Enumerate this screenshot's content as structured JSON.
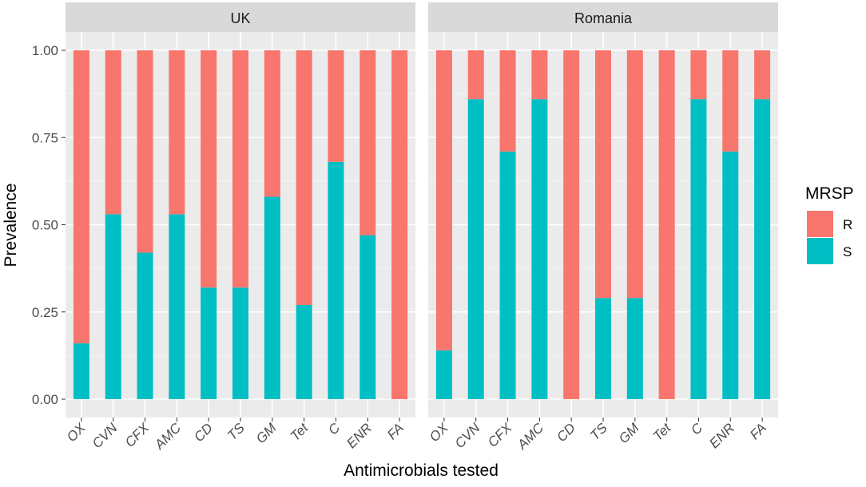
{
  "chart_data": {
    "type": "bar",
    "stacked": true,
    "ylabel": "Prevalence",
    "xlabel": "Antimicrobials tested",
    "ylim": [
      0,
      1
    ],
    "yticks": [
      "0.00",
      "0.25",
      "0.50",
      "0.75",
      "1.00"
    ],
    "ytick_values": [
      0,
      0.25,
      0.5,
      0.75,
      1.0
    ],
    "categories": [
      "OX",
      "CVN",
      "CFX",
      "AMC",
      "CD",
      "TS",
      "GM",
      "Tet",
      "C",
      "ENR",
      "FA"
    ],
    "legend": {
      "title": "MRSP",
      "position": "right",
      "entries": [
        {
          "label": "R",
          "color": "#F8766D"
        },
        {
          "label": "S",
          "color": "#00BFC4"
        }
      ]
    },
    "panels": [
      {
        "facet": "UK",
        "series": [
          {
            "name": "S",
            "values": [
              0.16,
              0.53,
              0.42,
              0.53,
              0.32,
              0.32,
              0.58,
              0.27,
              0.68,
              0.47,
              0.0
            ]
          },
          {
            "name": "R",
            "values": [
              0.84,
              0.47,
              0.58,
              0.47,
              0.68,
              0.68,
              0.42,
              0.73,
              0.32,
              0.53,
              1.0
            ]
          }
        ]
      },
      {
        "facet": "Romania",
        "series": [
          {
            "name": "S",
            "values": [
              0.14,
              0.86,
              0.71,
              0.86,
              0.0,
              0.29,
              0.29,
              0.0,
              0.86,
              0.71,
              0.86
            ]
          },
          {
            "name": "R",
            "values": [
              0.86,
              0.14,
              0.29,
              0.14,
              1.0,
              0.71,
              0.71,
              1.0,
              0.14,
              0.29,
              0.14
            ]
          }
        ]
      }
    ]
  }
}
